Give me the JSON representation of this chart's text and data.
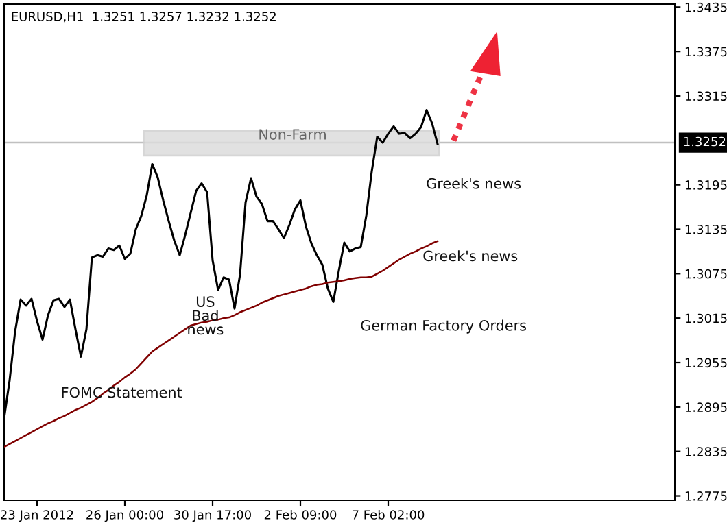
{
  "chart_data": {
    "type": "line",
    "title": "EURUSD,H1  1.3251 1.3257 1.3232 1.3252",
    "categories": [
      null,
      null,
      null,
      null,
      null,
      null,
      "23 Jan 2012",
      null,
      null,
      null,
      null,
      null,
      null,
      null,
      null,
      null,
      null,
      null,
      null,
      null,
      null,
      null,
      "26 Jan 00:00",
      null,
      null,
      null,
      null,
      null,
      null,
      null,
      null,
      null,
      null,
      null,
      null,
      null,
      null,
      null,
      "30 Jan 17:00",
      null,
      null,
      null,
      null,
      null,
      null,
      null,
      null,
      null,
      null,
      null,
      null,
      null,
      null,
      null,
      "2 Feb 09:00",
      null,
      null,
      null,
      null,
      null,
      null,
      null,
      null,
      null,
      null,
      null,
      null,
      null,
      null,
      null,
      "7 Feb 02:00",
      null,
      null,
      null,
      null,
      null,
      null,
      null,
      null,
      null,
      null,
      null,
      null,
      null,
      null,
      null,
      null,
      null,
      null,
      null,
      null,
      null,
      null,
      null,
      null,
      null,
      null,
      null,
      null,
      null,
      null,
      null,
      null,
      null,
      null,
      null,
      null,
      null,
      null,
      null,
      null,
      null,
      null,
      null,
      null,
      null,
      null,
      null,
      null,
      null,
      null,
      null,
      null
    ],
    "series": [
      {
        "color": "#000000",
        "values": [
          1.288,
          1.2931,
          1.2997,
          1.304,
          1.3032,
          1.3041,
          1.3011,
          1.2986,
          1.3019,
          1.3039,
          1.3041,
          1.303,
          1.304,
          1.3,
          1.2963,
          1.3,
          1.3097,
          1.31,
          1.3098,
          1.3109,
          1.3107,
          1.3113,
          1.3095,
          1.3102,
          1.3135,
          1.3153,
          1.3181,
          1.3223,
          1.3205,
          1.3174,
          1.3146,
          1.312,
          1.31,
          1.3127,
          1.3157,
          1.3187,
          1.3197,
          1.3185,
          1.3093,
          1.3053,
          1.307,
          1.3067,
          1.3028,
          1.3074,
          1.3171,
          1.3204,
          1.3179,
          1.3169,
          1.3146,
          1.3146,
          1.3135,
          1.3123,
          1.3141,
          1.3162,
          1.3174,
          1.3139,
          1.3116,
          1.31,
          1.3087,
          1.3055,
          1.3037,
          1.3079,
          1.3117,
          1.3105,
          1.3109,
          1.3111,
          1.3153,
          1.3213,
          1.326,
          1.3252,
          1.3264,
          1.3274,
          1.3264,
          1.3265,
          1.3258,
          1.3264,
          1.3273,
          1.3296,
          1.3278,
          1.325,
          null,
          null,
          null,
          null,
          null,
          null,
          null,
          null,
          null,
          null,
          null,
          null,
          null,
          null,
          null,
          null,
          null,
          null,
          null,
          null,
          null,
          null,
          null,
          null,
          null,
          null,
          null,
          null,
          null,
          null,
          null,
          null,
          null,
          null,
          null,
          null,
          null,
          null,
          null,
          null,
          null,
          null,
          null
        ]
      },
      {
        "color": "#800000",
        "values": [
          1.2841,
          1.2845,
          1.2849,
          1.2853,
          1.2857,
          1.2861,
          1.2865,
          1.2869,
          1.2873,
          1.2876,
          1.288,
          1.2883,
          1.2887,
          1.2891,
          1.2894,
          1.2898,
          1.2902,
          1.2907,
          1.2913,
          1.2918,
          1.2924,
          1.2929,
          1.2935,
          1.294,
          1.2946,
          1.2954,
          1.2962,
          1.297,
          1.2975,
          1.298,
          1.2985,
          1.299,
          1.2995,
          1.3,
          1.3005,
          1.3007,
          1.3009,
          1.301,
          1.3012,
          1.3013,
          1.3015,
          1.3016,
          1.3019,
          1.3023,
          1.3026,
          1.3029,
          1.3032,
          1.3036,
          1.3039,
          1.3042,
          1.3045,
          1.3047,
          1.3049,
          1.3051,
          1.3053,
          1.3055,
          1.3058,
          1.306,
          1.3061,
          1.3063,
          1.3064,
          1.3065,
          1.3066,
          1.3068,
          1.3069,
          1.307,
          1.307,
          1.3071,
          1.3075,
          1.3079,
          1.3084,
          1.3089,
          1.3094,
          1.3098,
          1.3102,
          1.3105,
          1.3109,
          1.3112,
          1.3116,
          1.3119,
          null,
          null,
          null,
          null,
          null,
          null,
          null,
          null,
          null,
          null,
          null,
          null,
          null,
          null,
          null,
          null,
          null,
          null,
          null,
          null,
          null,
          null,
          null,
          null,
          null,
          null,
          null,
          null,
          null,
          null,
          null,
          null,
          null,
          null,
          null,
          null,
          null,
          null,
          null,
          null,
          null,
          null,
          null
        ]
      }
    ],
    "ylim": [
      1.2769,
      1.3439
    ],
    "yticks": [
      1.2775,
      1.2835,
      1.2895,
      1.2955,
      1.3015,
      1.3075,
      1.3135,
      1.3195,
      1.3315,
      1.3375,
      1.3435
    ],
    "ref_lines": [
      {
        "axis": "y",
        "value": 1.3252,
        "label": "1.3252",
        "color": "#c0c0c0"
      }
    ],
    "annotations": [
      "FOMC Statement",
      "US\nBad\nnews",
      "German Factory Orders",
      "Greek's news",
      "Greek's news",
      "Non-Farm"
    ],
    "grid": false,
    "legend": false
  }
}
